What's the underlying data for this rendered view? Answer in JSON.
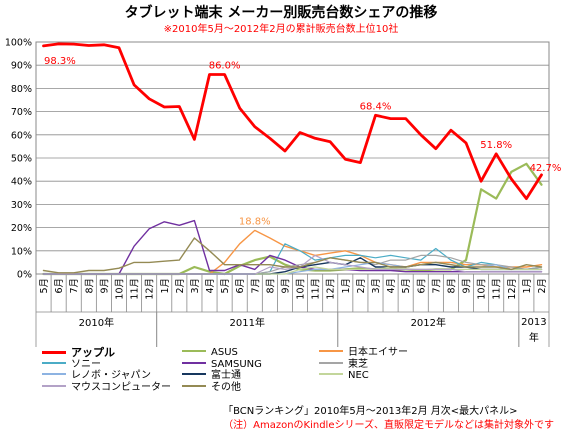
{
  "header": {
    "title": "タブレット端末 メーカー別販売台数シェアの推移",
    "subtitle": "※2010年5月～2012年2月の累計販売台数上位10社"
  },
  "notes": {
    "source": "「BCNランキング」2010年5月～2013年2月 月次<最大パネル>",
    "disclaimer": "（注）AmazonのKindleシリーズ、直販限定モデルなどは集計対象外です"
  },
  "chart_data": {
    "type": "line",
    "title": "タブレット端末 メーカー別販売台数シェアの推移",
    "subtitle": "※2010年5月～2012年2月の累計販売台数上位10社",
    "ylim": [
      0,
      100
    ],
    "y_ticks": [
      "0%",
      "10%",
      "20%",
      "30%",
      "40%",
      "50%",
      "60%",
      "70%",
      "80%",
      "90%",
      "100%"
    ],
    "grid": true,
    "legend_position": "bottom",
    "x": [
      "5月",
      "6月",
      "7月",
      "8月",
      "9月",
      "10月",
      "11月",
      "12月",
      "1月",
      "2月",
      "3月",
      "4月",
      "5月",
      "6月",
      "7月",
      "8月",
      "9月",
      "10月",
      "11月",
      "12月",
      "1月",
      "2月",
      "3月",
      "4月",
      "5月",
      "6月",
      "7月",
      "8月",
      "9月",
      "10月",
      "11月",
      "12月",
      "1月",
      "2月"
    ],
    "year_groups": [
      {
        "label": "2010年",
        "start": 0,
        "count": 8
      },
      {
        "label": "2011年",
        "start": 8,
        "count": 12
      },
      {
        "label": "2012年",
        "start": 20,
        "count": 12
      },
      {
        "label": "2013年",
        "start": 32,
        "count": 2
      }
    ],
    "series": [
      {
        "name": "アップル",
        "color": "#ff0000",
        "width": 2.8,
        "values": [
          98.3,
          99.2,
          99.1,
          98.5,
          98.8,
          97.5,
          81.5,
          75.5,
          72,
          72.2,
          58,
          86,
          86,
          71.5,
          63.5,
          58.5,
          53,
          61,
          58.5,
          57,
          49.5,
          48,
          68.4,
          67,
          67,
          60,
          54,
          62,
          56.5,
          40,
          51.8,
          41,
          32.5,
          42.7
        ]
      },
      {
        "name": "ASUS",
        "color": "#9bbb59",
        "width": 2.2,
        "values": [
          0,
          0,
          0,
          0,
          0,
          0,
          0,
          0,
          0,
          0,
          3,
          1,
          0,
          3.5,
          6,
          7.5,
          4,
          2,
          1.5,
          1.5,
          2,
          2.5,
          2,
          2,
          2,
          1.5,
          2,
          2,
          6,
          36.5,
          32.5,
          44,
          47.5,
          38.5
        ]
      },
      {
        "name": "日本エイサー",
        "color": "#f79646",
        "width": 1.4,
        "values": [
          0,
          0,
          0,
          0,
          0,
          0,
          0,
          0,
          0,
          0,
          0,
          0,
          5,
          13,
          18.8,
          15.5,
          12,
          10,
          8,
          9,
          10,
          8,
          5,
          4,
          3,
          5,
          5,
          5,
          4,
          4,
          3,
          3,
          3,
          4
        ]
      },
      {
        "name": "ソニー",
        "color": "#4bacc6",
        "width": 1.2,
        "values": [
          0,
          0,
          0,
          0,
          0,
          0,
          0,
          0,
          0,
          0,
          0,
          0,
          0,
          0,
          0,
          1,
          13,
          10,
          6,
          7,
          8,
          8,
          7,
          8,
          7,
          6,
          11,
          6,
          3,
          5,
          4,
          2,
          2,
          3
        ]
      },
      {
        "name": "SAMSUNG",
        "color": "#7030a0",
        "width": 1.4,
        "values": [
          0,
          0,
          0,
          0,
          0,
          0,
          12,
          19.5,
          22.5,
          21,
          23,
          1.5,
          1.5,
          4,
          2,
          8,
          6,
          3,
          2,
          2,
          2,
          1.5,
          1.5,
          1.5,
          1,
          1,
          1,
          1,
          1,
          1,
          1,
          1,
          1,
          1
        ]
      },
      {
        "name": "東芝",
        "color": "#a5a5a5",
        "width": 1.2,
        "values": [
          0,
          0,
          0,
          0,
          0,
          0,
          0,
          0,
          0,
          0,
          0,
          0,
          0,
          0,
          0,
          1,
          3,
          4,
          5,
          7,
          6,
          5,
          4,
          6,
          6,
          8,
          8,
          7,
          5,
          4,
          4,
          3,
          2,
          3
        ]
      },
      {
        "name": "レノボ・ジャパン",
        "color": "#8db3e2",
        "width": 1.2,
        "values": [
          0,
          0,
          0,
          0,
          0,
          0,
          0,
          0,
          0,
          0,
          0,
          0,
          0,
          0,
          0,
          0,
          0,
          1,
          2,
          2,
          3,
          4,
          5,
          4,
          3,
          4,
          5,
          4,
          3,
          3,
          4,
          2,
          2,
          2
        ]
      },
      {
        "name": "富士通",
        "color": "#17375e",
        "width": 1.4,
        "values": [
          0,
          0,
          0,
          0,
          0,
          0,
          0,
          0,
          0,
          0,
          0,
          0,
          0,
          0,
          0,
          0,
          1,
          3,
          4,
          5,
          4,
          7,
          3,
          3,
          3,
          4,
          4,
          3,
          3,
          2,
          2,
          2,
          2,
          2
        ]
      },
      {
        "name": "NEC",
        "color": "#c3d69b",
        "width": 1.2,
        "values": [
          0,
          0,
          0,
          0,
          0,
          0,
          0,
          0,
          0,
          0,
          0,
          0,
          0,
          0,
          0,
          0,
          0,
          2,
          3,
          2,
          2,
          2,
          2,
          3,
          2,
          2,
          2,
          2,
          2,
          2,
          2,
          2,
          2,
          2
        ]
      },
      {
        "name": "マウスコンピューター",
        "color": "#b3a2c7",
        "width": 1.2,
        "values": [
          0,
          0,
          0,
          0,
          0,
          0,
          0,
          0,
          0,
          0,
          0,
          0,
          0,
          0,
          0,
          3,
          2,
          3,
          8,
          5,
          4,
          3,
          2,
          2,
          2,
          2,
          2,
          2,
          1,
          1,
          1,
          1,
          1,
          1
        ]
      },
      {
        "name": "その他",
        "color": "#948a54",
        "width": 1.4,
        "values": [
          1.5,
          0.5,
          0.5,
          1.5,
          1.5,
          2.5,
          5,
          5,
          5.5,
          6,
          15.5,
          10,
          4,
          4,
          4,
          4,
          3,
          3,
          5,
          7,
          6,
          5,
          5,
          3,
          3,
          4,
          5,
          4,
          3,
          3,
          3,
          2,
          4,
          3
        ]
      }
    ],
    "annotations": [
      {
        "text": "98.3%",
        "color": "#ff0000",
        "series": 0,
        "index": 0
      },
      {
        "text": "86.0%",
        "color": "#ff0000",
        "series": 0,
        "index": 12
      },
      {
        "text": "18.8%",
        "color": "#f79646",
        "series": 2,
        "index": 14
      },
      {
        "text": "68.4%",
        "color": "#ff0000",
        "series": 0,
        "index": 22
      },
      {
        "text": "51.8%",
        "color": "#ff0000",
        "series": 0,
        "index": 30
      },
      {
        "text": "42.7%",
        "color": "#ff0000",
        "series": 0,
        "index": 33
      }
    ],
    "legend_order": [
      0,
      1,
      2,
      3,
      4,
      5,
      6,
      7,
      8,
      9,
      10
    ]
  }
}
